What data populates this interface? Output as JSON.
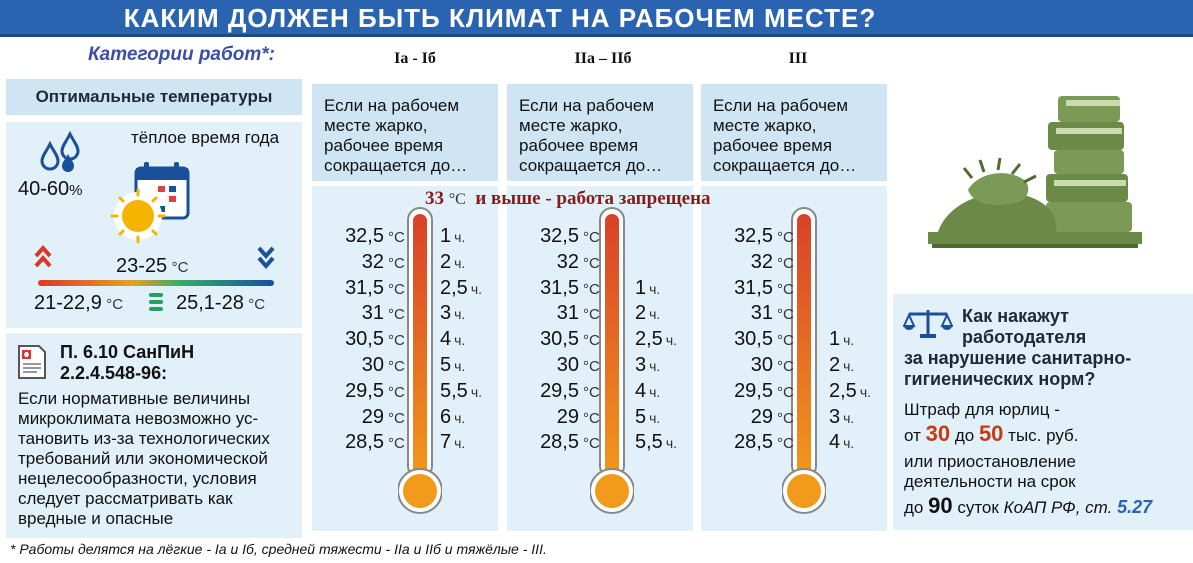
{
  "title": "КАКИМ ДОЛЖЕН БЫТЬ КЛИМАТ НА РАБОЧЕМ МЕСТЕ?",
  "categories_label": "Категории работ*:",
  "columns": [
    {
      "name": "Iа - Iб",
      "condition": [
        "Если на рабочем",
        "месте жарко,",
        "рабочее время",
        "сокращается до…"
      ]
    },
    {
      "name": "IIа – IIб",
      "condition": [
        "Если на рабочем",
        "месте жарко,",
        "рабочее время",
        "сокращается до…"
      ]
    },
    {
      "name": "III",
      "condition": [
        "Если на рабочем",
        "месте жарко,",
        "рабочее время",
        "сокращается до…"
      ]
    }
  ],
  "optimal": {
    "heading": "Оптимальные температуры",
    "season": "тёплое время года",
    "humidity": "40-60",
    "humidity_unit": "%",
    "optimal_range": "23-25",
    "lower_range": "21-22,9",
    "upper_range": "25,1-28",
    "unit": "°С"
  },
  "warning": {
    "temp": "33",
    "unit": "°С",
    "text": "и выше - работа запрещена"
  },
  "temperatures": [
    "32,5",
    "32",
    "31,5",
    "31",
    "30,5",
    "30",
    "29,5",
    "29",
    "28,5"
  ],
  "temp_unit": "°С",
  "hours_unit": "ч.",
  "hours": [
    [
      "1",
      "2",
      "2,5",
      "3",
      "4",
      "5",
      "5,5",
      "6",
      "7"
    ],
    [
      "",
      "",
      "1",
      "2",
      "2,5",
      "3",
      "4",
      "5",
      "5,5"
    ],
    [
      "",
      "",
      "",
      "",
      "1",
      "2",
      "2,5",
      "3",
      "4"
    ]
  ],
  "sanpin": {
    "title_line1": "П. 6.10 СанПиН",
    "title_line2": "2.2.4.548-96:",
    "body": [
      "Если нормативные величины",
      "микроклимата невозможно ус-",
      "тановить из-за технологических",
      "требований или экономической",
      "нецелесообразности, условия",
      "следует рассматривать как",
      "вредные и опасные"
    ]
  },
  "penalty": {
    "question": [
      "Как накажут",
      "работодателя",
      "за нарушение санитарно-",
      "гигиенических норм?"
    ],
    "line1": "Штраф для юрлиц -",
    "from_word": "от",
    "from_val": "30",
    "to_word": "до",
    "to_val": "50",
    "currency": "тыс. руб.",
    "line3": "или приостановление",
    "line4": "деятельности на срок",
    "up_to_word": "до",
    "days_val": "90",
    "days_word": "суток",
    "law": "КоАП РФ, ст.",
    "article": "5.27"
  },
  "footnote": "* Работы делятся на лёгкие - Iа и Iб, средней тяжести - IIа и IIб и тяжёлые - III.",
  "colors": {
    "banner": "#2a64b0",
    "panel": "#e2f0f9",
    "panel_dark": "#cfe5f3",
    "thermo_red": "#d8412a",
    "thermo_orange": "#f29a1c",
    "accent_red": "#c63a12",
    "illustration_green": "#7a9a55"
  }
}
